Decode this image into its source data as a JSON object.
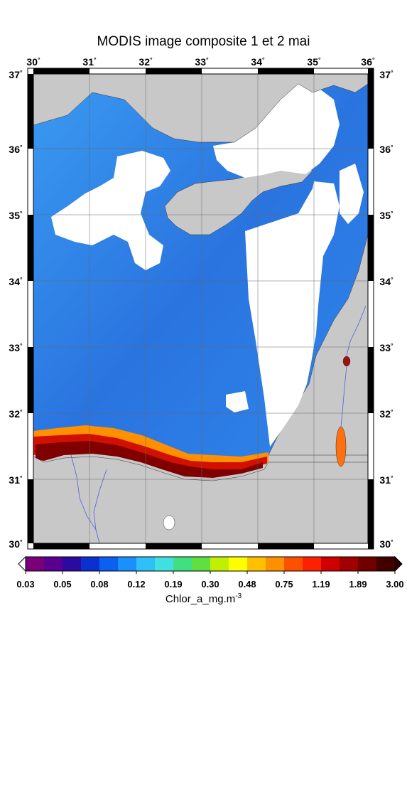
{
  "title": "MODIS image composite 1 et 2 mai",
  "lon_ticks": [
    "30",
    "31",
    "32",
    "33",
    "34",
    "35",
    "36"
  ],
  "lat_ticks": [
    "30",
    "31",
    "32",
    "33",
    "34",
    "35",
    "36",
    "37"
  ],
  "degree_mark": "°",
  "colorbar": {
    "labels": [
      "0.03",
      "0.05",
      "0.08",
      "0.12",
      "0.19",
      "0.30",
      "0.48",
      "0.75",
      "1.19",
      "1.89",
      "3.00"
    ],
    "title_main": "Chlor_a_mg.m",
    "title_exp": "-3",
    "colors": [
      "#7a007a",
      "#2a0a9a",
      "#0a3ad8",
      "#1a90ff",
      "#40d0f0",
      "#40e080",
      "#40e040",
      "#ffff00",
      "#ff9000",
      "#ff2000",
      "#800000"
    ]
  },
  "colors": {
    "land": "#c8c8c8",
    "cloud": "#ffffff",
    "water_deep": "#2a7ae6",
    "water_light": "#3a9af0",
    "coast_high": "#c80000",
    "coast_max": "#800000",
    "river": "#5060e0",
    "grid": "#666666"
  },
  "chart_data": {
    "type": "heatmap",
    "title": "MODIS image composite 1 et 2 mai",
    "x_range": [
      30,
      36
    ],
    "y_range": [
      30,
      37
    ],
    "x_ticks": [
      30,
      31,
      32,
      33,
      34,
      35,
      36
    ],
    "y_ticks": [
      30,
      31,
      32,
      33,
      34,
      35,
      36,
      37
    ],
    "colorbar_values": [
      0.03,
      0.05,
      0.08,
      0.12,
      0.19,
      0.3,
      0.48,
      0.75,
      1.19,
      1.89,
      3.0
    ],
    "colorbar_scale": "log",
    "grid": true
  }
}
